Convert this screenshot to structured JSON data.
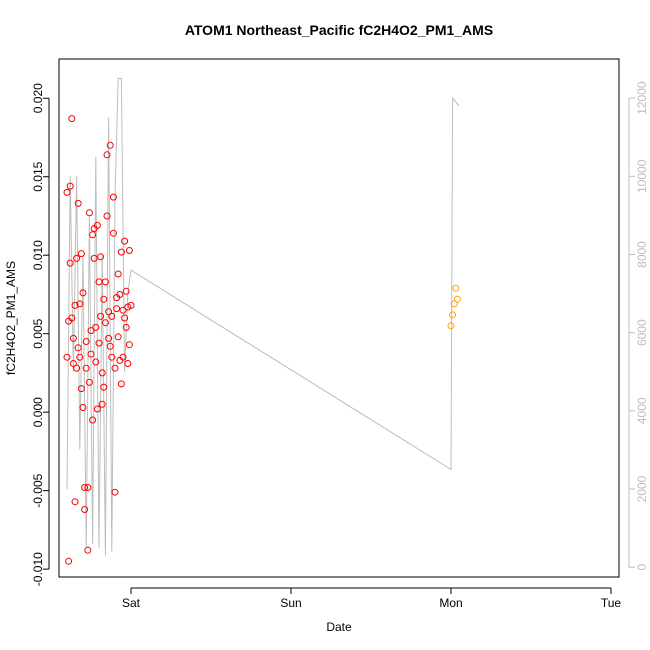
{
  "chart_data": {
    "type": "scatter",
    "title": "ATOM1 Northeast_Pacific fC2H4O2_PM1_AMS",
    "xlabel": "Date",
    "ylabel": "fC2H4O2_PM1_AMS",
    "x_axis": {
      "unit": "days",
      "range": [
        0.55,
        3.05
      ],
      "ticks": [
        {
          "value": 1,
          "label": "Sat"
        },
        {
          "value": 2,
          "label": "Sun"
        },
        {
          "value": 3,
          "label": "Mon"
        },
        {
          "value": 4,
          "label": "Tue"
        }
      ]
    },
    "y_axis": {
      "range": [
        -0.0105,
        0.0225
      ],
      "ticks": [
        {
          "value": -0.01,
          "label": "-0.010"
        },
        {
          "value": -0.005,
          "label": "-0.005"
        },
        {
          "value": 0,
          "label": "0.000"
        },
        {
          "value": 0.005,
          "label": "0.005"
        },
        {
          "value": 0.01,
          "label": "0.010"
        },
        {
          "value": 0.015,
          "label": "0.015"
        },
        {
          "value": 0.02,
          "label": "0.020"
        }
      ]
    },
    "y2_axis": {
      "range": [
        -250,
        13000
      ],
      "ticks": [
        {
          "value": 0,
          "label": "0"
        },
        {
          "value": 2000,
          "label": "2000"
        },
        {
          "value": 4000,
          "label": "4000"
        },
        {
          "value": 6000,
          "label": "6000"
        },
        {
          "value": 8000,
          "label": "8000"
        },
        {
          "value": 10000,
          "label": "10000"
        },
        {
          "value": 12000,
          "label": "12000"
        }
      ]
    },
    "series": [
      {
        "color": "#ff0000",
        "marker": "open-circle",
        "x": [
          0.6,
          0.6,
          0.61,
          0.61,
          0.62,
          0.62,
          0.63,
          0.63,
          0.64,
          0.64,
          0.65,
          0.65,
          0.66,
          0.66,
          0.67,
          0.67,
          0.68,
          0.68,
          0.69,
          0.69,
          0.7,
          0.7,
          0.71,
          0.71,
          0.72,
          0.72,
          0.73,
          0.73,
          0.74,
          0.74,
          0.75,
          0.75,
          0.76,
          0.76,
          0.77,
          0.77,
          0.78,
          0.78,
          0.79,
          0.79,
          0.8,
          0.8,
          0.81,
          0.81,
          0.82,
          0.82,
          0.83,
          0.83,
          0.84,
          0.84,
          0.85,
          0.85,
          0.86,
          0.86,
          0.87,
          0.87,
          0.88,
          0.88,
          0.89,
          0.89,
          0.9,
          0.9,
          0.91,
          0.91,
          0.92,
          0.92,
          0.93,
          0.93,
          0.94,
          0.94,
          0.95,
          0.95,
          0.96,
          0.96,
          0.97,
          0.97,
          0.98,
          0.98,
          0.99,
          0.99,
          1.0
        ],
        "y": [
          0.0035,
          0.014,
          -0.0095,
          0.0058,
          0.0144,
          0.0095,
          0.006,
          0.0187,
          0.0047,
          0.0031,
          -0.0057,
          0.0068,
          0.0028,
          0.0098,
          0.0133,
          0.0041,
          0.0069,
          0.0035,
          0.0015,
          0.0101,
          0.0076,
          0.0003,
          -0.0062,
          -0.0048,
          0.0045,
          0.0028,
          -0.0088,
          -0.0048,
          0.0019,
          0.0127,
          0.0037,
          0.0052,
          -0.0005,
          0.0113,
          0.0117,
          0.0098,
          0.0054,
          0.0032,
          0.0002,
          0.0119,
          0.0083,
          0.0044,
          0.0099,
          0.0061,
          0.0025,
          0.0005,
          0.0016,
          0.0072,
          0.0057,
          0.0083,
          0.0164,
          0.0125,
          0.0064,
          0.0047,
          0.0042,
          0.017,
          0.0035,
          0.0061,
          0.0114,
          0.0137,
          0.0028,
          -0.0051,
          0.0066,
          0.0073,
          0.0088,
          0.0048,
          0.0075,
          0.0033,
          0.0102,
          0.0018,
          0.0035,
          0.0065,
          0.006,
          0.0109,
          0.0054,
          0.0077,
          0.0031,
          0.0067,
          0.0043,
          0.0103,
          0.0068
        ]
      },
      {
        "color": "#ffa500",
        "marker": "open-circle",
        "x": [
          3.0,
          3.01,
          3.02,
          3.03,
          3.04
        ],
        "y": [
          0.0055,
          0.0062,
          0.0069,
          0.0079,
          0.0072
        ]
      }
    ],
    "line_series": {
      "color": "#bdbdbd",
      "axis": "right",
      "x": [
        0.6,
        0.62,
        0.64,
        0.66,
        0.68,
        0.7,
        0.72,
        0.74,
        0.76,
        0.78,
        0.8,
        0.82,
        0.84,
        0.86,
        0.88,
        0.9,
        0.92,
        0.94,
        0.96,
        0.98,
        1.0,
        3.0,
        3.01,
        3.03,
        3.05
      ],
      "y": [
        2000,
        10000,
        5000,
        10000,
        3000,
        8000,
        500,
        9000,
        600,
        10500,
        500,
        8000,
        300,
        11500,
        400,
        9500,
        12500,
        12500,
        5000,
        7000,
        7600,
        2500,
        12000,
        11900,
        11800
      ]
    }
  }
}
